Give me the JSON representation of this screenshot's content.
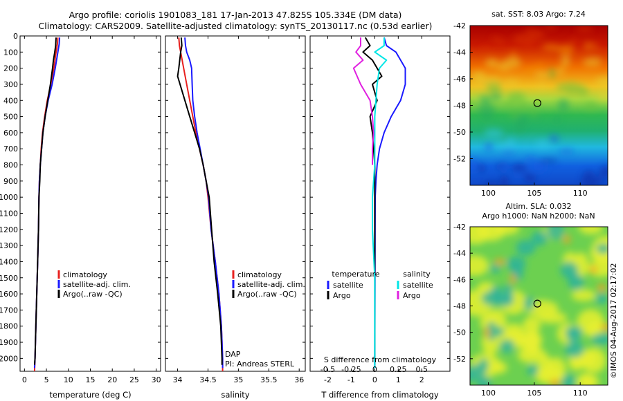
{
  "header": {
    "line1": "Argo profile: coriolis 1901083_181 17-Jan-2013 47.825S 105.334E (DM data)",
    "line2": "Climatology: CARS2009. Satellite-adjusted climatology: synTS_20130117.nc (0.53d earlier)"
  },
  "colors": {
    "climatology": "#e8201e",
    "satellite": "#1a1aff",
    "argo": "#000000",
    "sal_sat": "#00e6e6",
    "sal_argo": "#e020e0"
  },
  "chart_data": [
    {
      "type": "line",
      "panel": "temperature",
      "xlabel": "temperature (deg C)",
      "ylabel": "",
      "xlim": [
        -1,
        31
      ],
      "ylim": [
        2080,
        0
      ],
      "y_reversed": true,
      "xticks": [
        0,
        5,
        10,
        15,
        20,
        25,
        30
      ],
      "yticks": [
        0,
        100,
        200,
        300,
        400,
        500,
        600,
        700,
        800,
        900,
        1000,
        1100,
        1200,
        1300,
        1400,
        1500,
        1600,
        1700,
        1800,
        1900,
        2000
      ],
      "legend": {
        "position": "center",
        "entries": [
          "climatology",
          "satellite-adj. clim.",
          "Argo(..raw -QC)"
        ]
      },
      "series": [
        {
          "name": "climatology",
          "color": "#e8201e",
          "points": [
            [
              7.6,
              10
            ],
            [
              7.5,
              50
            ],
            [
              7.2,
              100
            ],
            [
              6.7,
              200
            ],
            [
              6.0,
              300
            ],
            [
              5.2,
              400
            ],
            [
              4.6,
              500
            ],
            [
              4.1,
              600
            ],
            [
              3.8,
              700
            ],
            [
              3.6,
              800
            ],
            [
              3.4,
              900
            ],
            [
              3.3,
              1000
            ],
            [
              3.2,
              1200
            ],
            [
              3.0,
              1400
            ],
            [
              2.8,
              1600
            ],
            [
              2.6,
              1800
            ],
            [
              2.4,
              2000
            ],
            [
              2.3,
              2080
            ]
          ]
        },
        {
          "name": "satellite-adj. clim.",
          "color": "#1a1aff",
          "points": [
            [
              8.0,
              10
            ],
            [
              7.9,
              50
            ],
            [
              7.6,
              100
            ],
            [
              7.0,
              200
            ],
            [
              6.3,
              300
            ],
            [
              5.4,
              400
            ],
            [
              4.7,
              500
            ],
            [
              4.2,
              600
            ],
            [
              3.9,
              700
            ],
            [
              3.6,
              800
            ],
            [
              3.4,
              900
            ],
            [
              3.3,
              1000
            ],
            [
              3.2,
              1200
            ],
            [
              3.0,
              1400
            ],
            [
              2.8,
              1600
            ],
            [
              2.6,
              1800
            ],
            [
              2.4,
              2000
            ],
            [
              2.3,
              2060
            ]
          ]
        },
        {
          "name": "Argo(..raw -QC)",
          "color": "#000000",
          "points": [
            [
              7.2,
              10
            ],
            [
              7.1,
              60
            ],
            [
              6.9,
              100
            ],
            [
              6.6,
              150
            ],
            [
              6.4,
              200
            ],
            [
              5.9,
              300
            ],
            [
              5.3,
              400
            ],
            [
              4.7,
              500
            ],
            [
              4.2,
              600
            ],
            [
              3.9,
              700
            ],
            [
              3.6,
              800
            ],
            [
              3.5,
              900
            ],
            [
              3.3,
              1000
            ],
            [
              3.2,
              1200
            ],
            [
              3.0,
              1400
            ],
            [
              2.8,
              1600
            ],
            [
              2.6,
              1800
            ],
            [
              2.4,
              2000
            ],
            [
              2.3,
              2040
            ]
          ]
        }
      ]
    },
    {
      "type": "line",
      "panel": "salinity",
      "xlabel": "salinity",
      "ylabel": "",
      "xlim": [
        33.8,
        36.1
      ],
      "ylim": [
        2080,
        0
      ],
      "y_reversed": true,
      "xticks": [
        34,
        34.5,
        35,
        35.5,
        36
      ],
      "legend": {
        "position": "center",
        "entries": [
          "climatology",
          "satellite-adj. clim.",
          "Argo(..raw -QC)"
        ]
      },
      "annotations": [
        "DAP",
        "PI: Andreas STERL"
      ],
      "series": [
        {
          "name": "climatology",
          "color": "#e8201e",
          "points": [
            [
              34.02,
              10
            ],
            [
              34.03,
              60
            ],
            [
              34.05,
              100
            ],
            [
              34.1,
              200
            ],
            [
              34.15,
              300
            ],
            [
              34.2,
              400
            ],
            [
              34.25,
              500
            ],
            [
              34.3,
              600
            ],
            [
              34.36,
              700
            ],
            [
              34.42,
              800
            ],
            [
              34.47,
              900
            ],
            [
              34.5,
              1000
            ],
            [
              34.55,
              1200
            ],
            [
              34.62,
              1400
            ],
            [
              34.68,
              1600
            ],
            [
              34.72,
              1800
            ],
            [
              34.74,
              2000
            ],
            [
              34.74,
              2080
            ]
          ]
        },
        {
          "name": "satellite-adj. clim.",
          "color": "#1a1aff",
          "points": [
            [
              34.12,
              10
            ],
            [
              34.13,
              60
            ],
            [
              34.15,
              100
            ],
            [
              34.2,
              150
            ],
            [
              34.23,
              200
            ],
            [
              34.24,
              300
            ],
            [
              34.25,
              400
            ],
            [
              34.28,
              500
            ],
            [
              34.32,
              600
            ],
            [
              34.37,
              700
            ],
            [
              34.42,
              800
            ],
            [
              34.47,
              900
            ],
            [
              34.51,
              1000
            ],
            [
              34.55,
              1200
            ],
            [
              34.62,
              1400
            ],
            [
              34.68,
              1600
            ],
            [
              34.72,
              1800
            ],
            [
              34.74,
              2000
            ],
            [
              34.74,
              2060
            ]
          ]
        },
        {
          "name": "Argo(..raw -QC)",
          "color": "#000000",
          "points": [
            [
              34.06,
              10
            ],
            [
              34.07,
              60
            ],
            [
              34.05,
              100
            ],
            [
              34.02,
              200
            ],
            [
              34.0,
              250
            ],
            [
              34.04,
              300
            ],
            [
              34.12,
              400
            ],
            [
              34.2,
              500
            ],
            [
              34.28,
              600
            ],
            [
              34.36,
              700
            ],
            [
              34.42,
              800
            ],
            [
              34.47,
              900
            ],
            [
              34.52,
              1000
            ],
            [
              34.56,
              1200
            ],
            [
              34.6,
              1400
            ],
            [
              34.66,
              1600
            ],
            [
              34.71,
              1800
            ],
            [
              34.73,
              2000
            ],
            [
              34.73,
              2040
            ]
          ]
        }
      ]
    },
    {
      "type": "line",
      "panel": "difference",
      "xlabel": "T difference from climatology",
      "xlabel_top": "S difference from climatology",
      "xlim": [
        -2.75,
        3.2
      ],
      "ylim": [
        2080,
        0
      ],
      "y_reversed": true,
      "xticks": [
        -2,
        -1,
        0,
        1,
        2
      ],
      "xticks_s": [
        "-0.5",
        "-0.25",
        "0",
        "0.25",
        "0.5"
      ],
      "legend": {
        "position": "center",
        "headers": [
          "temperature",
          "salinity"
        ],
        "entries": [
          "satellite",
          "Argo",
          "satellite",
          "Argo"
        ]
      },
      "series": [
        {
          "name": "satellite",
          "quantity": "temperature",
          "color": "#1a1aff",
          "points": [
            [
              0.4,
              10
            ],
            [
              0.5,
              60
            ],
            [
              0.9,
              100
            ],
            [
              1.3,
              200
            ],
            [
              1.3,
              300
            ],
            [
              1.1,
              400
            ],
            [
              0.7,
              500
            ],
            [
              0.4,
              600
            ],
            [
              0.2,
              700
            ],
            [
              0.1,
              800
            ],
            [
              0.05,
              900
            ],
            [
              0.02,
              1000
            ],
            [
              0.01,
              1500
            ],
            [
              0.0,
              2000
            ],
            [
              0.0,
              2060
            ]
          ]
        },
        {
          "name": "Argo",
          "quantity": "temperature",
          "color": "#000000",
          "points": [
            [
              -0.4,
              10
            ],
            [
              -0.2,
              60
            ],
            [
              -0.5,
              100
            ],
            [
              -0.1,
              150
            ],
            [
              0.1,
              200
            ],
            [
              0.3,
              250
            ],
            [
              -0.1,
              300
            ],
            [
              0.1,
              400
            ],
            [
              -0.2,
              500
            ],
            [
              -0.1,
              600
            ],
            [
              -0.05,
              700
            ],
            [
              0.0,
              800
            ],
            [
              0.0,
              1000
            ],
            [
              0.0,
              1500
            ],
            [
              0.0,
              2040
            ]
          ]
        },
        {
          "name": "satellite",
          "quantity": "salinity",
          "color": "#00e6e6",
          "points": [
            [
              0.4,
              10
            ],
            [
              0.4,
              60
            ],
            [
              0.0,
              100
            ],
            [
              0.5,
              150
            ],
            [
              0.2,
              200
            ],
            [
              0.1,
              300
            ],
            [
              0.05,
              400
            ],
            [
              0.0,
              500
            ],
            [
              0.0,
              600
            ],
            [
              0.0,
              800
            ],
            [
              -0.1,
              1000
            ],
            [
              -0.1,
              1200
            ],
            [
              0.0,
              1500
            ],
            [
              0.0,
              2060
            ]
          ]
        },
        {
          "name": "Argo",
          "quantity": "salinity",
          "color": "#e020e0",
          "points": [
            [
              -0.6,
              10
            ],
            [
              -0.6,
              60
            ],
            [
              -0.8,
              100
            ],
            [
              -0.5,
              150
            ],
            [
              -0.9,
              200
            ],
            [
              -0.6,
              300
            ],
            [
              -0.2,
              400
            ],
            [
              -0.1,
              500
            ],
            [
              -0.05,
              600
            ],
            [
              -0.1,
              700
            ],
            [
              -0.1,
              800
            ]
          ]
        }
      ]
    },
    {
      "type": "heatmap",
      "panel": "sst-map",
      "title": "sat. SST: 8.03 Argo: 7.24",
      "xlim": [
        98,
        113
      ],
      "ylim": [
        -54,
        -42
      ],
      "xticks": [
        100,
        105,
        110
      ],
      "yticks": [
        -42,
        -44,
        -46,
        -48,
        -50,
        -52
      ],
      "marker": {
        "lon": 105.334,
        "lat": -47.825
      }
    },
    {
      "type": "heatmap",
      "panel": "sla-map",
      "title_lines": [
        "Altim. SLA: 0.032",
        "Argo h1000: NaN h2000: NaN"
      ],
      "xlim": [
        98,
        113
      ],
      "ylim": [
        -54,
        -42
      ],
      "xticks": [
        100,
        105,
        110
      ],
      "yticks": [
        -42,
        -44,
        -46,
        -48,
        -50,
        -52
      ],
      "marker": {
        "lon": 105.334,
        "lat": -47.825
      }
    }
  ],
  "footer": {
    "stamp": "©IMOS 04-Aug-2017 02:17:02"
  }
}
